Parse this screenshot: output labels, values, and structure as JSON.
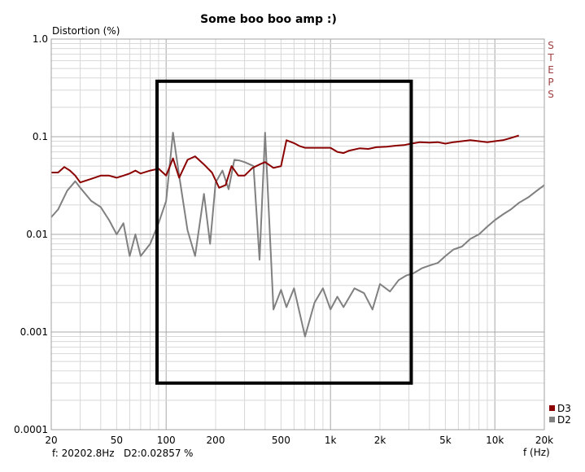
{
  "chart_data": {
    "type": "line",
    "title": "Some boo boo amp :)",
    "ylabel": "Distortion (%)",
    "xlabel": "f (Hz)",
    "x_scale": "log",
    "y_scale": "log",
    "xlim": [
      20,
      20000
    ],
    "ylim": [
      0.0001,
      1.0
    ],
    "x_ticks": [
      {
        "value": 20,
        "label": "20"
      },
      {
        "value": 50,
        "label": "50"
      },
      {
        "value": 100,
        "label": "100"
      },
      {
        "value": 200,
        "label": "200"
      },
      {
        "value": 500,
        "label": "500"
      },
      {
        "value": 1000,
        "label": "1k"
      },
      {
        "value": 2000,
        "label": "2k"
      },
      {
        "value": 5000,
        "label": "5k"
      },
      {
        "value": 10000,
        "label": "10k"
      },
      {
        "value": 20000,
        "label": "20k"
      }
    ],
    "y_ticks": [
      {
        "value": 1.0,
        "label": "1.0"
      },
      {
        "value": 0.1,
        "label": "0.1"
      },
      {
        "value": 0.01,
        "label": "0.01"
      },
      {
        "value": 0.001,
        "label": "0.001"
      },
      {
        "value": 0.0001,
        "label": "0.0001"
      }
    ],
    "grid": true,
    "legend_position": "bottom-right",
    "series": [
      {
        "name": "D3",
        "color": "#8b0000",
        "x": [
          20,
          22,
          24,
          26,
          28,
          30,
          35,
          40,
          45,
          50,
          55,
          60,
          65,
          70,
          80,
          90,
          100,
          110,
          120,
          135,
          150,
          170,
          190,
          210,
          230,
          250,
          275,
          300,
          335,
          370,
          400,
          450,
          500,
          540,
          600,
          650,
          700,
          800,
          900,
          1000,
          1100,
          1200,
          1300,
          1500,
          1700,
          1900,
          2200,
          2500,
          2800,
          3100,
          3500,
          4000,
          4500,
          5000,
          5600,
          6300,
          7100,
          8000,
          9000,
          10000,
          11200,
          12500,
          14000
        ],
        "values": [
          0.043,
          0.043,
          0.049,
          0.045,
          0.04,
          0.034,
          0.037,
          0.04,
          0.04,
          0.038,
          0.04,
          0.042,
          0.045,
          0.042,
          0.045,
          0.047,
          0.04,
          0.06,
          0.038,
          0.058,
          0.063,
          0.052,
          0.043,
          0.03,
          0.032,
          0.05,
          0.04,
          0.04,
          0.048,
          0.052,
          0.055,
          0.048,
          0.05,
          0.092,
          0.086,
          0.08,
          0.077,
          0.077,
          0.077,
          0.077,
          0.07,
          0.068,
          0.072,
          0.076,
          0.075,
          0.078,
          0.079,
          0.081,
          0.082,
          0.085,
          0.088,
          0.087,
          0.088,
          0.085,
          0.088,
          0.09,
          0.092,
          0.09,
          0.088,
          0.09,
          0.092,
          0.097,
          0.103
        ]
      },
      {
        "name": "D2",
        "color": "#808080",
        "x": [
          20,
          22,
          25,
          28,
          30,
          35,
          40,
          45,
          50,
          55,
          60,
          65,
          70,
          80,
          90,
          100,
          110,
          120,
          135,
          150,
          170,
          185,
          200,
          220,
          240,
          260,
          280,
          300,
          340,
          370,
          400,
          450,
          500,
          540,
          600,
          700,
          800,
          900,
          1000,
          1100,
          1200,
          1400,
          1600,
          1800,
          2000,
          2300,
          2600,
          2900,
          3200,
          3600,
          4000,
          4500,
          5000,
          5600,
          6300,
          7100,
          8000,
          9000,
          10000,
          11200,
          12500,
          14000,
          16000,
          18000,
          20000
        ],
        "values": [
          0.015,
          0.018,
          0.028,
          0.035,
          0.03,
          0.022,
          0.019,
          0.014,
          0.01,
          0.013,
          0.006,
          0.01,
          0.006,
          0.008,
          0.013,
          0.022,
          0.11,
          0.04,
          0.011,
          0.006,
          0.026,
          0.008,
          0.034,
          0.045,
          0.029,
          0.058,
          0.057,
          0.055,
          0.05,
          0.0055,
          0.11,
          0.0017,
          0.0027,
          0.0018,
          0.0028,
          0.0009,
          0.002,
          0.0028,
          0.0017,
          0.0023,
          0.0018,
          0.0028,
          0.0025,
          0.0017,
          0.0031,
          0.0026,
          0.0034,
          0.0038,
          0.004,
          0.0045,
          0.0048,
          0.0051,
          0.006,
          0.007,
          0.0075,
          0.009,
          0.01,
          0.012,
          0.014,
          0.016,
          0.018,
          0.021,
          0.024,
          0.028,
          0.032
        ]
      }
    ],
    "readout": {
      "freq_label": "f:",
      "freq": "20202.8Hz",
      "d2_label": "D2:0.02857",
      "unit": "%"
    },
    "vertical_side_label": "STEPS",
    "annotation": {
      "type": "rectangle",
      "x_from": 88,
      "x_to": 3100,
      "y_from": 0.0003,
      "y_to": 0.37
    }
  }
}
